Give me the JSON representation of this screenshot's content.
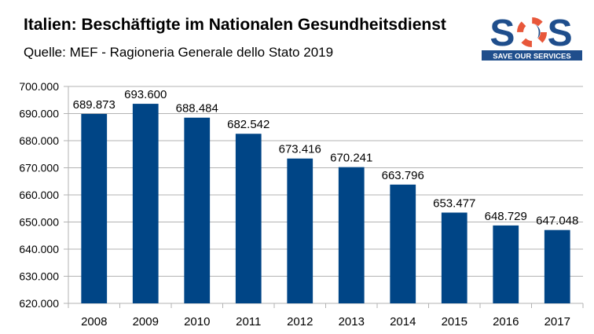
{
  "header": {
    "title": "Italien: Beschäftigte im Nationalen Gesundheitsdienst",
    "subtitle": "Quelle: MEF - Ragioneria Generale dello Stato 2019"
  },
  "logo": {
    "letters": "SOS",
    "tagline": "SAVE OUR SERVICES",
    "color": "#1f4e8c",
    "accent": "#e8573a"
  },
  "chart_data": {
    "type": "bar",
    "categories": [
      "2008",
      "2009",
      "2010",
      "2011",
      "2012",
      "2013",
      "2014",
      "2015",
      "2016",
      "2017"
    ],
    "values": [
      689873,
      693600,
      688484,
      682542,
      673416,
      670241,
      663796,
      653477,
      648729,
      647048
    ],
    "data_labels": [
      "689.873",
      "693.600",
      "688.484",
      "682.542",
      "673.416",
      "670.241",
      "663.796",
      "653.477",
      "648.729",
      "647.048"
    ],
    "title": "",
    "xlabel": "",
    "ylabel": "",
    "ylim": [
      620000,
      700000
    ],
    "yticks": [
      620000,
      630000,
      640000,
      650000,
      660000,
      670000,
      680000,
      690000,
      700000
    ],
    "ytick_labels": [
      "620.000",
      "630.000",
      "640.000",
      "650.000",
      "660.000",
      "670.000",
      "680.000",
      "690.000",
      "700.000"
    ],
    "grid": true,
    "legend": "none",
    "bar_color": "#004586",
    "grid_color": "#b3b3b3"
  }
}
